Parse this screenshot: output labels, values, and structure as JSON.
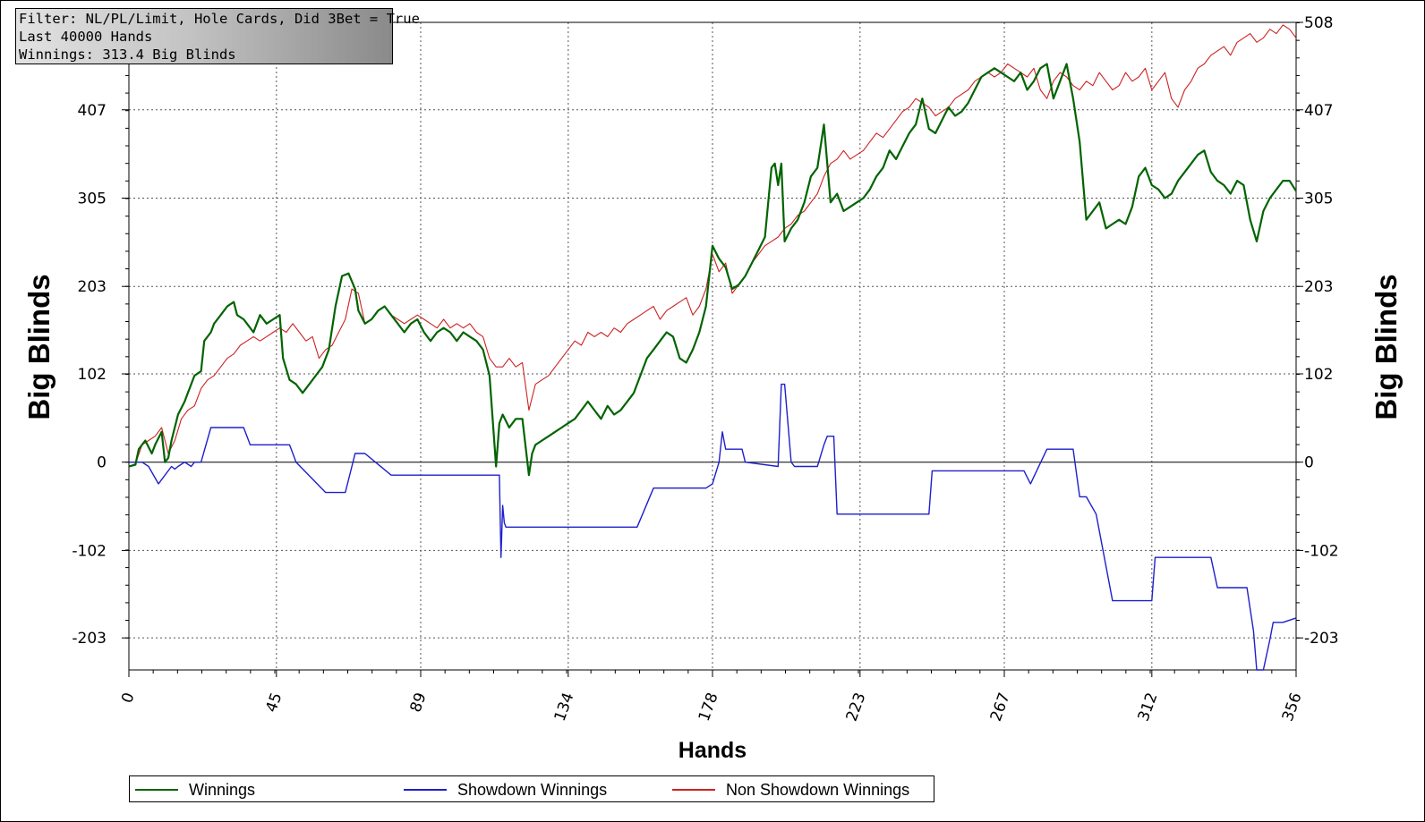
{
  "info_box": {
    "line1": "Filter: NL/PL/Limit, Hole Cards, Did 3Bet = True",
    "line2": "Last  40000 Hands",
    "line3": "Winnings: 313.4 Big Blinds"
  },
  "legend": {
    "winnings": "Winnings",
    "showdown": "Showdown Winnings",
    "nonshowdown": "Non Showdown Winnings"
  },
  "colors": {
    "winnings": "#006400",
    "showdown": "#1f1fcc",
    "nonshowdown": "#cc2222"
  },
  "chart_data": {
    "type": "line",
    "xlabel": "Hands",
    "ylabel": "Big Blinds",
    "ylabel_right": "Big Blinds",
    "xlim": [
      0,
      356
    ],
    "ylim": [
      -240,
      508
    ],
    "x_ticks": [
      "0",
      "45",
      "89",
      "134",
      "178",
      "223",
      "267",
      "312",
      "356"
    ],
    "x_tick_values": [
      0,
      45,
      89,
      134,
      178,
      223,
      267,
      312,
      356
    ],
    "y_ticks": [
      "508",
      "407",
      "305",
      "203",
      "102",
      "0",
      "-102",
      "-203"
    ],
    "y_tick_values": [
      508,
      407,
      305,
      203,
      102,
      0,
      -102,
      -203
    ],
    "grid": true,
    "legend_position": "bottom",
    "series": [
      {
        "name": "Winnings",
        "x": [
          0,
          2,
          3,
          5,
          7,
          8,
          10,
          11,
          12,
          13,
          15,
          17,
          18,
          20,
          22,
          23,
          25,
          26,
          28,
          30,
          32,
          33,
          35,
          36,
          38,
          40,
          42,
          44,
          46,
          47,
          49,
          51,
          53,
          55,
          57,
          59,
          61,
          63,
          65,
          67,
          69,
          70,
          72,
          74,
          76,
          78,
          80,
          82,
          84,
          86,
          88,
          90,
          92,
          94,
          96,
          98,
          100,
          102,
          104,
          106,
          108,
          110,
          112,
          113,
          114,
          116,
          118,
          120,
          122,
          123,
          124,
          126,
          128,
          130,
          132,
          134,
          136,
          138,
          140,
          142,
          144,
          146,
          148,
          150,
          152,
          154,
          156,
          158,
          160,
          162,
          164,
          166,
          168,
          170,
          172,
          174,
          176,
          178,
          180,
          182,
          184,
          186,
          188,
          190,
          192,
          194,
          196,
          197,
          198,
          199,
          200,
          202,
          204,
          206,
          208,
          210,
          212,
          214,
          216,
          218,
          220,
          222,
          224,
          226,
          228,
          230,
          232,
          234,
          236,
          238,
          240,
          242,
          244,
          246,
          248,
          250,
          252,
          254,
          256,
          258,
          260,
          262,
          264,
          266,
          268,
          270,
          272,
          274,
          276,
          278,
          280,
          282,
          284,
          286,
          288,
          290,
          292,
          294,
          296,
          298,
          300,
          302,
          304,
          306,
          308,
          310,
          312,
          314,
          316,
          318,
          320,
          322,
          324,
          326,
          328,
          330,
          332,
          334,
          336,
          338,
          340,
          342,
          344,
          346,
          348,
          350,
          352,
          354,
          356
        ],
        "values": [
          -5,
          -3,
          15,
          25,
          10,
          20,
          35,
          0,
          5,
          25,
          55,
          70,
          80,
          100,
          105,
          140,
          150,
          160,
          170,
          180,
          185,
          170,
          165,
          160,
          150,
          170,
          160,
          165,
          170,
          120,
          95,
          90,
          80,
          90,
          100,
          110,
          130,
          180,
          215,
          218,
          200,
          175,
          160,
          165,
          175,
          180,
          170,
          160,
          150,
          160,
          165,
          150,
          140,
          150,
          155,
          150,
          140,
          150,
          145,
          140,
          130,
          100,
          -5,
          45,
          55,
          40,
          50,
          50,
          -15,
          10,
          20,
          25,
          30,
          35,
          40,
          45,
          50,
          60,
          70,
          60,
          50,
          65,
          55,
          60,
          70,
          80,
          100,
          120,
          130,
          140,
          150,
          145,
          120,
          115,
          130,
          150,
          180,
          250,
          235,
          225,
          200,
          205,
          215,
          230,
          245,
          260,
          340,
          345,
          320,
          345,
          255,
          270,
          280,
          300,
          330,
          340,
          390,
          300,
          310,
          290,
          295,
          300,
          305,
          315,
          330,
          340,
          360,
          350,
          365,
          380,
          390,
          420,
          385,
          380,
          395,
          410,
          400,
          405,
          415,
          430,
          445,
          450,
          455,
          450,
          445,
          440,
          450,
          430,
          440,
          455,
          460,
          420,
          440,
          460,
          420,
          370,
          280,
          290,
          300,
          270,
          275,
          280,
          275,
          295,
          330,
          340,
          320,
          315,
          305,
          310,
          325,
          335,
          345,
          355,
          360,
          335,
          325,
          320,
          310,
          325,
          320,
          280,
          255,
          290,
          305,
          315,
          325,
          325,
          313
        ]
      },
      {
        "name": "Showdown Winnings",
        "x": [
          0,
          4,
          6,
          9,
          13,
          14,
          15,
          17,
          19,
          20,
          22,
          25,
          35,
          37,
          45,
          49,
          51,
          60,
          66,
          68,
          69,
          72,
          80,
          90,
          100,
          108,
          110,
          113,
          113.5,
          114,
          114.5,
          115,
          117,
          130,
          140,
          150,
          154,
          155,
          160,
          170,
          175,
          176,
          178,
          180,
          181,
          182,
          185,
          187,
          188,
          198,
          199,
          200,
          202,
          203,
          210,
          212,
          213,
          215,
          216,
          219,
          220,
          230,
          240,
          244,
          245,
          250,
          260,
          270,
          272,
          273,
          275,
          280,
          287,
          288,
          290,
          292,
          295,
          300,
          310,
          312,
          313,
          315,
          330,
          332,
          333,
          341,
          343,
          344,
          345,
          346,
          348,
          349,
          350,
          352,
          356
        ],
        "values": [
          0,
          0,
          -5,
          -25,
          -5,
          -8,
          -5,
          0,
          -5,
          0,
          0,
          40,
          40,
          20,
          20,
          20,
          0,
          -35,
          -35,
          -5,
          10,
          10,
          -15,
          -15,
          -15,
          -15,
          -15,
          -15,
          -110,
          -50,
          -70,
          -75,
          -75,
          -75,
          -75,
          -75,
          -75,
          -75,
          -30,
          -30,
          -30,
          -30,
          -25,
          0,
          35,
          15,
          15,
          15,
          0,
          -5,
          90,
          90,
          0,
          -5,
          -5,
          20,
          30,
          30,
          -60,
          -60,
          -60,
          -60,
          -60,
          -60,
          -10,
          -10,
          -10,
          -10,
          -10,
          -10,
          -25,
          15,
          15,
          15,
          -40,
          -40,
          -60,
          -160,
          -160,
          -160,
          -110,
          -110,
          -110,
          -145,
          -145,
          -145,
          -195,
          -240,
          -240,
          -240,
          -205,
          -185,
          -185,
          -185,
          -180
        ]
      },
      {
        "name": "Non Showdown Winnings",
        "x": [
          0,
          2,
          4,
          6,
          8,
          10,
          12,
          14,
          16,
          18,
          20,
          22,
          24,
          26,
          28,
          30,
          32,
          34,
          36,
          38,
          40,
          42,
          44,
          46,
          48,
          50,
          52,
          54,
          56,
          58,
          60,
          62,
          64,
          66,
          68,
          70,
          72,
          74,
          76,
          78,
          80,
          82,
          84,
          86,
          88,
          90,
          92,
          94,
          96,
          98,
          100,
          102,
          104,
          106,
          108,
          110,
          112,
          114,
          116,
          118,
          120,
          122,
          124,
          126,
          128,
          130,
          132,
          134,
          136,
          138,
          140,
          142,
          144,
          146,
          148,
          150,
          152,
          154,
          156,
          158,
          160,
          162,
          164,
          166,
          168,
          170,
          172,
          174,
          176,
          178,
          180,
          182,
          184,
          186,
          188,
          190,
          192,
          194,
          196,
          198,
          200,
          202,
          204,
          206,
          208,
          210,
          212,
          214,
          216,
          218,
          220,
          222,
          224,
          226,
          228,
          230,
          232,
          234,
          236,
          238,
          240,
          242,
          244,
          246,
          248,
          250,
          252,
          254,
          256,
          258,
          260,
          262,
          264,
          266,
          268,
          270,
          272,
          274,
          276,
          278,
          280,
          282,
          284,
          286,
          288,
          290,
          292,
          294,
          296,
          298,
          300,
          302,
          304,
          306,
          308,
          310,
          312,
          314,
          316,
          318,
          320,
          322,
          324,
          326,
          328,
          330,
          332,
          334,
          336,
          338,
          340,
          342,
          344,
          346,
          348,
          350,
          352,
          354,
          356
        ],
        "values": [
          -5,
          -2,
          20,
          25,
          30,
          40,
          10,
          25,
          50,
          60,
          65,
          85,
          95,
          100,
          110,
          120,
          125,
          135,
          140,
          145,
          140,
          145,
          150,
          155,
          150,
          160,
          150,
          140,
          145,
          120,
          130,
          135,
          150,
          165,
          200,
          195,
          160,
          165,
          175,
          180,
          170,
          165,
          160,
          165,
          170,
          165,
          160,
          155,
          165,
          155,
          160,
          155,
          160,
          150,
          145,
          120,
          110,
          110,
          120,
          110,
          115,
          60,
          90,
          95,
          100,
          110,
          120,
          130,
          140,
          135,
          150,
          145,
          150,
          145,
          155,
          150,
          160,
          165,
          170,
          175,
          180,
          165,
          175,
          180,
          185,
          190,
          170,
          180,
          200,
          240,
          220,
          230,
          195,
          205,
          215,
          230,
          240,
          250,
          255,
          260,
          270,
          275,
          285,
          290,
          300,
          310,
          330,
          345,
          350,
          360,
          350,
          355,
          360,
          370,
          380,
          375,
          385,
          395,
          405,
          410,
          420,
          415,
          410,
          400,
          405,
          410,
          420,
          425,
          430,
          440,
          445,
          450,
          445,
          450,
          460,
          455,
          450,
          445,
          455,
          430,
          420,
          440,
          450,
          445,
          435,
          430,
          440,
          435,
          450,
          440,
          430,
          435,
          450,
          440,
          445,
          455,
          430,
          440,
          450,
          420,
          410,
          430,
          440,
          455,
          460,
          470,
          475,
          480,
          470,
          485,
          490,
          495,
          485,
          490,
          500,
          495,
          505,
          500,
          490
        ]
      }
    ]
  }
}
